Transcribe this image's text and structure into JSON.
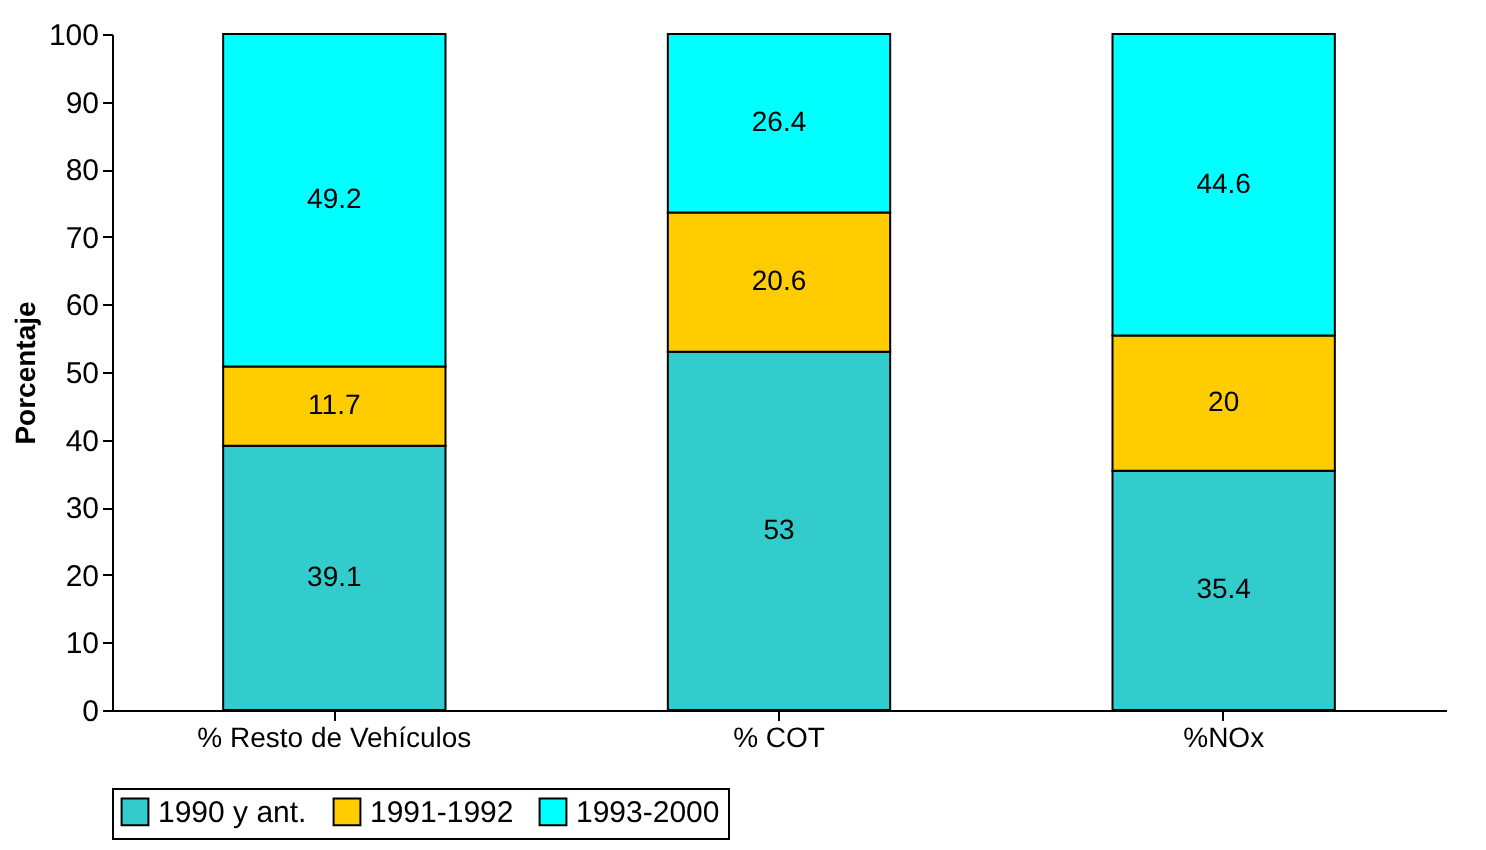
{
  "chart_data": {
    "type": "bar",
    "stacked": true,
    "ylabel": "Porcentaje",
    "categories": [
      "% Resto de Vehículos",
      "% COT",
      "%NOx"
    ],
    "series": [
      {
        "name": "1990 y ant.",
        "color": "#33cccc",
        "values": [
          39.1,
          53,
          35.4
        ]
      },
      {
        "name": "1991-1992",
        "color": "#ffcc00",
        "values": [
          11.7,
          20.6,
          20
        ]
      },
      {
        "name": "1993-2000",
        "color": "#00ffff",
        "values": [
          49.2,
          26.4,
          44.6
        ]
      }
    ],
    "ylim": [
      0,
      100
    ],
    "yticks": [
      0,
      10,
      20,
      30,
      40,
      50,
      60,
      70,
      80,
      90,
      100
    ],
    "data_labels": true,
    "legend": "bottom",
    "grid": false
  }
}
